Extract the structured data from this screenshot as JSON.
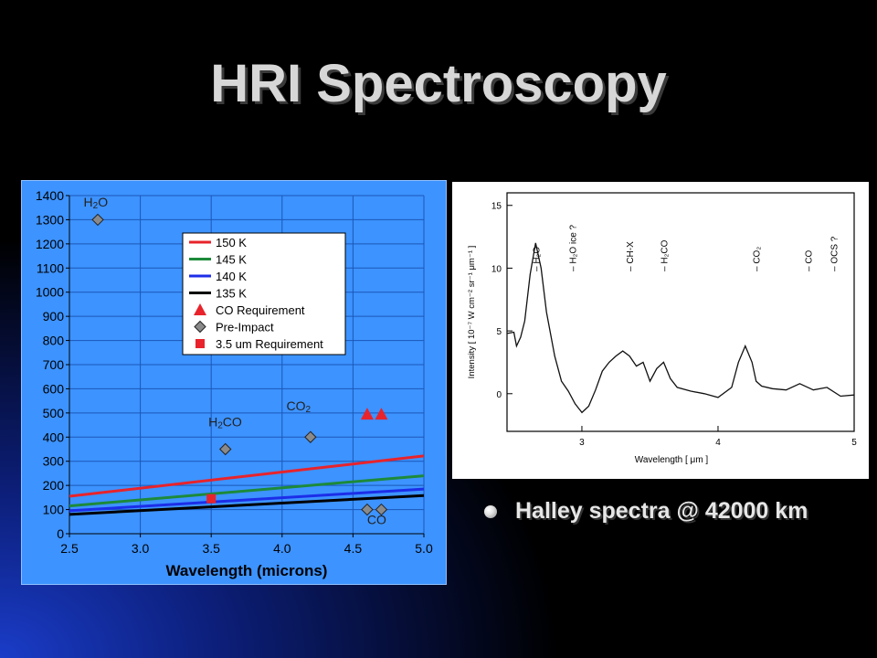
{
  "slide": {
    "title": "HRI Spectroscopy",
    "bullet": "Halley spectra @ 42000 km"
  },
  "chart_data": [
    {
      "type": "line",
      "xlabel": "Wavelength (microns)",
      "ylabel": "",
      "xlim": [
        2.5,
        5.0
      ],
      "ylim": [
        0,
        1400
      ],
      "xticks": [
        "2.5",
        "3.0",
        "3.5",
        "4.0",
        "4.5",
        "5.0"
      ],
      "yticks": [
        "0",
        "100",
        "200",
        "300",
        "400",
        "500",
        "600",
        "700",
        "800",
        "900",
        "1000",
        "1100",
        "1200",
        "1300",
        "1400"
      ],
      "grid": true,
      "legend_position": "top-center",
      "series": [
        {
          "name": "150 K",
          "kind": "line",
          "color": "#e8232b",
          "x": [
            2.5,
            5.0
          ],
          "y": [
            155,
            322
          ]
        },
        {
          "name": "145 K",
          "kind": "line",
          "color": "#1d8a3a",
          "x": [
            2.5,
            5.0
          ],
          "y": [
            115,
            240
          ]
        },
        {
          "name": "140 K",
          "kind": "line",
          "color": "#1c2ee8",
          "x": [
            2.5,
            5.0
          ],
          "y": [
            95,
            185
          ]
        },
        {
          "name": "135 K",
          "kind": "line",
          "color": "#000000",
          "x": [
            2.5,
            5.0
          ],
          "y": [
            80,
            158
          ]
        },
        {
          "name": "CO Requirement",
          "kind": "triangle",
          "color": "#e8232b",
          "x": [
            4.6,
            4.7
          ],
          "y": [
            495,
            495
          ]
        },
        {
          "name": "Pre-Impact",
          "kind": "diamond",
          "color": "#8a8a8a",
          "x": [
            2.7,
            3.6,
            4.2,
            4.6,
            4.7
          ],
          "y": [
            1300,
            350,
            400,
            100,
            100
          ]
        },
        {
          "name": "3.5 um Requirement",
          "kind": "square",
          "color": "#e8232b",
          "x": [
            3.5
          ],
          "y": [
            145
          ]
        }
      ],
      "annotations": [
        {
          "text": "H",
          "sub": "2",
          "tail": "O",
          "x": 2.6,
          "y": 1355
        },
        {
          "text": "H",
          "sub": "2",
          "tail": "CO",
          "x": 3.48,
          "y": 445
        },
        {
          "text": "CO",
          "sub": "2",
          "tail": "",
          "x": 4.03,
          "y": 510
        },
        {
          "text": "CO",
          "sub": "",
          "tail": "",
          "x": 4.6,
          "y": 40
        }
      ]
    },
    {
      "type": "line",
      "xlabel": "Wavelength  [ μm ]",
      "ylabel": "Intensity  [ 10⁻⁷ W cm⁻² sr⁻¹ μm⁻¹ ]",
      "xlim": [
        2.45,
        5.0
      ],
      "ylim": [
        -3,
        16
      ],
      "xticks": [
        "3",
        "4",
        "5"
      ],
      "yticks": [
        "0",
        "5",
        "10",
        "15"
      ],
      "grid": false,
      "series": [
        {
          "name": "",
          "x": [
            2.45,
            2.5,
            2.52,
            2.55,
            2.58,
            2.62,
            2.66,
            2.7,
            2.74,
            2.8,
            2.85,
            2.9,
            2.95,
            3.0,
            3.05,
            3.1,
            3.15,
            3.2,
            3.25,
            3.3,
            3.35,
            3.4,
            3.45,
            3.5,
            3.55,
            3.6,
            3.65,
            3.7,
            3.8,
            3.9,
            4.0,
            4.1,
            4.15,
            4.2,
            4.25,
            4.28,
            4.32,
            4.4,
            4.5,
            4.6,
            4.7,
            4.8,
            4.9,
            5.0
          ],
          "y": [
            4.8,
            4.9,
            3.8,
            4.5,
            5.8,
            9.5,
            12.0,
            10.0,
            6.5,
            3.0,
            1.0,
            0.2,
            -0.8,
            -1.5,
            -1.0,
            0.3,
            1.8,
            2.5,
            3.0,
            3.4,
            3.0,
            2.2,
            2.5,
            1.0,
            2.0,
            2.5,
            1.2,
            0.5,
            0.2,
            0.0,
            -0.3,
            0.5,
            2.5,
            3.8,
            2.5,
            1.0,
            0.6,
            0.4,
            0.3,
            0.8,
            0.3,
            0.5,
            -0.2,
            -0.1
          ]
        }
      ],
      "annotations": [
        {
          "text": "H₂O",
          "x": 2.66
        },
        {
          "text": "H₂O ice ?",
          "x": 2.93
        },
        {
          "text": "CH-X",
          "x": 3.35
        },
        {
          "text": "H₂CO",
          "x": 3.6
        },
        {
          "text": "CO₂",
          "x": 4.28
        },
        {
          "text": "CO",
          "x": 4.66
        },
        {
          "text": "OCS ?",
          "x": 4.85
        }
      ]
    }
  ]
}
